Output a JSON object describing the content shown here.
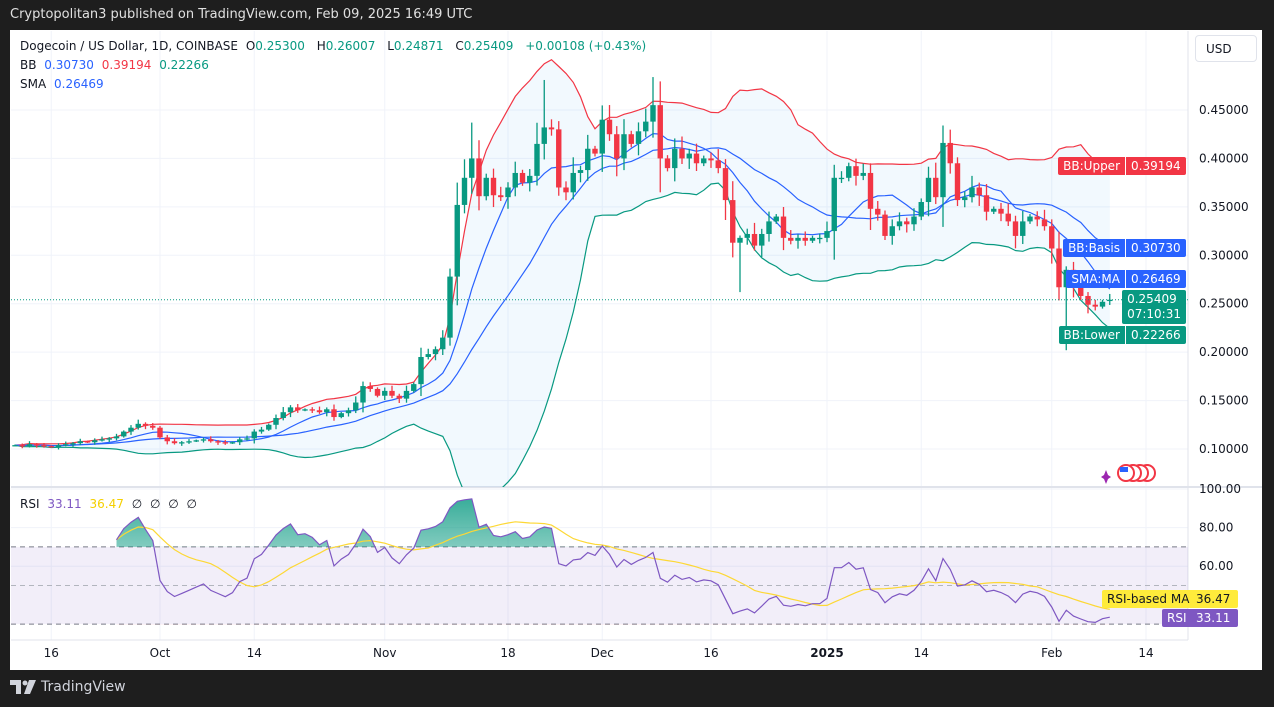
{
  "attribution": "Cryptopolitan3 published on TradingView.com, Feb 09, 2025 16:49 UTC",
  "legend": {
    "symbol": "Dogecoin / US Dollar, 1D, COINBASE",
    "o_label": "O",
    "o": "0.25300",
    "h_label": "H",
    "h": "0.26007",
    "l_label": "L",
    "l": "0.24871",
    "c_label": "C",
    "c": "0.25409",
    "change": "+0.00108 (+0.43%)",
    "bb_label": "BB",
    "bb_basis": "0.30730",
    "bb_upper": "0.39194",
    "bb_lower": "0.22266",
    "sma_label": "SMA",
    "sma": "0.26469"
  },
  "rsi_legend": {
    "label": "RSI",
    "rsi": "33.11",
    "ma": "36.47",
    "na": [
      "∅",
      "∅",
      "∅",
      "∅"
    ]
  },
  "currency_button": "USD",
  "tags": {
    "bb_upper_label": "BB:Upper",
    "bb_upper_value": "0.39194",
    "bb_basis_label": "BB:Basis",
    "bb_basis_value": "0.30730",
    "sma_label": "SMA:MA",
    "sma_value": "0.26469",
    "price_value": "0.25409",
    "countdown": "07:10:31",
    "bb_lower_label": "BB:Lower",
    "bb_lower_value": "0.22266",
    "rsi_ma_label": "RSI-based MA",
    "rsi_ma_value": "36.47",
    "rsi_label": "RSI",
    "rsi_value": "33.11"
  },
  "brand": "TradingView",
  "colors": {
    "up": "#089981",
    "down": "#f23645",
    "basis": "#2962ff",
    "sma": "#2962ff",
    "upper": "#f23645",
    "lower": "#089981",
    "rsi": "#7e57c2",
    "rsi_ma": "#fdd835"
  },
  "chart_data": {
    "type": "candlestick",
    "title": "Dogecoin / US Dollar, 1D, COINBASE",
    "start_date": "2024-09-11",
    "closes": [
      0.104,
      0.103,
      0.105,
      0.104,
      0.103,
      0.102,
      0.104,
      0.105,
      0.106,
      0.108,
      0.107,
      0.109,
      0.11,
      0.111,
      0.113,
      0.118,
      0.122,
      0.126,
      0.124,
      0.122,
      0.112,
      0.108,
      0.106,
      0.107,
      0.108,
      0.109,
      0.11,
      0.108,
      0.107,
      0.106,
      0.107,
      0.11,
      0.111,
      0.118,
      0.12,
      0.125,
      0.132,
      0.138,
      0.143,
      0.14,
      0.141,
      0.14,
      0.138,
      0.141,
      0.133,
      0.137,
      0.14,
      0.148,
      0.165,
      0.162,
      0.155,
      0.16,
      0.155,
      0.152,
      0.16,
      0.167,
      0.195,
      0.198,
      0.203,
      0.215,
      0.278,
      0.352,
      0.38,
      0.4,
      0.361,
      0.38,
      0.362,
      0.36,
      0.37,
      0.385,
      0.375,
      0.382,
      0.415,
      0.432,
      0.43,
      0.37,
      0.365,
      0.385,
      0.388,
      0.41,
      0.405,
      0.44,
      0.425,
      0.4,
      0.425,
      0.415,
      0.428,
      0.438,
      0.455,
      0.4,
      0.39,
      0.41,
      0.4,
      0.405,
      0.395,
      0.4,
      0.398,
      0.39,
      0.357,
      0.313,
      0.318,
      0.322,
      0.31,
      0.322,
      0.335,
      0.34,
      0.318,
      0.315,
      0.318,
      0.315,
      0.318,
      0.318,
      0.325,
      0.38,
      0.38,
      0.392,
      0.382,
      0.385,
      0.348,
      0.342,
      0.32,
      0.33,
      0.335,
      0.332,
      0.34,
      0.355,
      0.38,
      0.36,
      0.416,
      0.395,
      0.357,
      0.36,
      0.37,
      0.362,
      0.345,
      0.348,
      0.343,
      0.335,
      0.32,
      0.335,
      0.34,
      0.337,
      0.33,
      0.307,
      0.267,
      0.285,
      0.267,
      0.258,
      0.249,
      0.247,
      0.252,
      0.25409
    ],
    "last_candle": {
      "open": 0.253,
      "high": 0.26007,
      "low": 0.24871,
      "close": 0.25409
    },
    "wick_extremes": [
      {
        "day": 53,
        "high": 0.481
      },
      {
        "day": 43,
        "high": 0.437
      },
      {
        "day": 68,
        "high": 0.484
      },
      {
        "day": 69,
        "low": 0.365
      },
      {
        "day": 80,
        "low": 0.262
      },
      {
        "day": 108,
        "high": 0.434
      },
      {
        "day": 125,
        "low": 0.202
      }
    ],
    "indicators": {
      "bb_length": 20,
      "bb_mult": 2,
      "sma_length": 9,
      "rsi_length": 14,
      "rsi_ma_length": 14
    },
    "price_ticks": [
      {
        "label": "0.45000",
        "value": 0.45
      },
      {
        "label": "0.40000",
        "value": 0.4
      },
      {
        "label": "0.35000",
        "value": 0.35
      },
      {
        "label": "0.30000",
        "value": 0.3
      },
      {
        "label": "0.25000",
        "value": 0.25
      },
      {
        "label": "0.20000",
        "value": 0.2
      },
      {
        "label": "0.15000",
        "value": 0.15
      },
      {
        "label": "0.10000",
        "value": 0.1
      }
    ],
    "rsi_ticks": [
      {
        "label": "100.00",
        "value": 100
      },
      {
        "label": "80.00",
        "value": 80
      },
      {
        "label": "60.00",
        "value": 60
      }
    ],
    "rsi_levels": [
      70,
      50,
      30
    ],
    "x_ticks": [
      {
        "label": "16",
        "day": -15
      },
      {
        "label": "Oct",
        "day": 0
      },
      {
        "label": "14",
        "day": 13
      },
      {
        "label": "Nov",
        "day": 31
      },
      {
        "label": "18",
        "day": 48
      },
      {
        "label": "Dec",
        "day": 61
      },
      {
        "label": "16",
        "day": 76
      },
      {
        "label": "2025",
        "day": 92
      },
      {
        "label": "14",
        "day": 105
      },
      {
        "label": "Feb",
        "day": 123
      },
      {
        "label": "14",
        "day": 136
      }
    ]
  }
}
